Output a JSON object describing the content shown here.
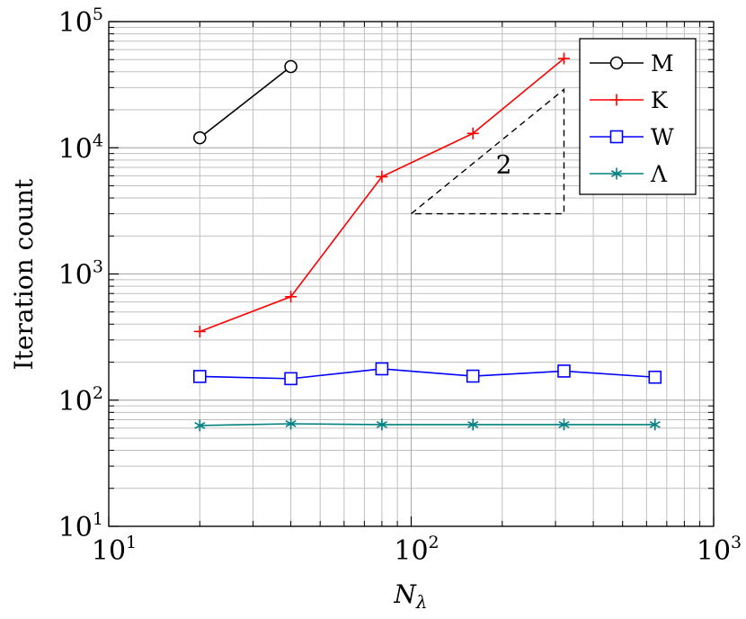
{
  "chart_data": {
    "type": "line",
    "xscale": "log",
    "yscale": "log",
    "xlim": [
      10,
      1000
    ],
    "ylim": [
      10,
      100000
    ],
    "xlabel_base": "N",
    "xlabel_sub": "λ",
    "ylabel": "Iteration count",
    "grid": true,
    "legend_position": "top-right",
    "x_ticks": [
      {
        "value": 10,
        "base": "10",
        "exp": "1"
      },
      {
        "value": 100,
        "base": "10",
        "exp": "2"
      },
      {
        "value": 1000,
        "base": "10",
        "exp": "3"
      }
    ],
    "y_ticks": [
      {
        "value": 10,
        "base": "10",
        "exp": "1"
      },
      {
        "value": 100,
        "base": "10",
        "exp": "2"
      },
      {
        "value": 1000,
        "base": "10",
        "exp": "3"
      },
      {
        "value": 10000,
        "base": "10",
        "exp": "4"
      },
      {
        "value": 100000,
        "base": "10",
        "exp": "5"
      }
    ],
    "series": [
      {
        "name": "M",
        "color": "#000000",
        "marker": "circle",
        "x": [
          20,
          40
        ],
        "y": [
          12000,
          44000
        ]
      },
      {
        "name": "K",
        "color": "#ff0000",
        "marker": "plus",
        "x": [
          20,
          40,
          80,
          160,
          320
        ],
        "y": [
          350,
          660,
          5900,
          13000,
          51000
        ]
      },
      {
        "name": "W",
        "color": "#0000ff",
        "marker": "square",
        "x": [
          20,
          40,
          80,
          160,
          320,
          640
        ],
        "y": [
          154,
          148,
          177,
          155,
          170,
          152
        ]
      },
      {
        "name": "Λ",
        "color": "#008080",
        "marker": "asterisk",
        "x": [
          20,
          40,
          80,
          160,
          320,
          640
        ],
        "y": [
          63,
          65,
          64,
          64,
          64,
          64
        ]
      }
    ],
    "slope_triangle": {
      "label": "2",
      "x": [
        100,
        320
      ],
      "y": [
        3000,
        29000
      ],
      "color": "#000000"
    }
  }
}
